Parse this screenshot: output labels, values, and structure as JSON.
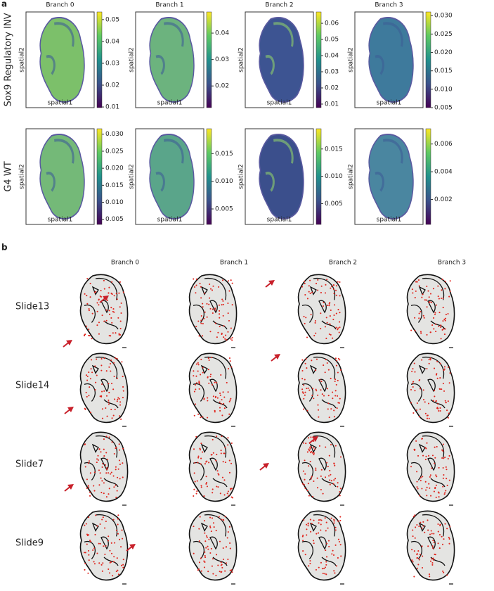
{
  "panel_a": {
    "label": "a",
    "x_label": "spatial1",
    "y_label": "spatial2",
    "columns": [
      "Branch 0",
      "Branch 1",
      "Branch 2",
      "Branch 3"
    ],
    "rows": [
      {
        "label": "Sox9 Regulatory INV",
        "colorbars": [
          {
            "lim": [
              0.0097,
              0.0535
            ],
            "ticks": [
              0.01,
              0.02,
              0.03,
              0.04,
              0.05
            ]
          },
          {
            "lim": [
              0.0118,
              0.048
            ],
            "ticks": [
              0.02,
              0.03,
              0.04
            ]
          },
          {
            "lim": [
              0.0078,
              0.067
            ],
            "ticks": [
              0.01,
              0.02,
              0.03,
              0.04,
              0.05,
              0.06
            ]
          },
          {
            "lim": [
              0.005,
              0.031
            ],
            "ticks": [
              0.005,
              {
                "value": 0.01,
                "label": "0.010"
              },
              0.015,
              {
                "value": 0.02,
                "label": "0.020"
              },
              0.025,
              {
                "value": 0.03,
                "label": "0.030"
              }
            ]
          }
        ]
      },
      {
        "label": "G4 WT",
        "colorbars": [
          {
            "lim": [
              0.0035,
              0.0316
            ],
            "ticks": [
              0.005,
              {
                "value": 0.01,
                "label": "0.010"
              },
              0.015,
              {
                "value": 0.02,
                "label": "0.020"
              },
              0.025,
              {
                "value": 0.03,
                "label": "0.030"
              }
            ]
          },
          {
            "lim": [
              0.0022,
              0.0195
            ],
            "ticks": [
              0.005,
              {
                "value": 0.01,
                "label": "0.010"
              },
              0.015
            ]
          },
          {
            "lim": [
              0.0012,
              0.0187
            ],
            "ticks": [
              0.005,
              {
                "value": 0.01,
                "label": "0.010"
              },
              0.015
            ]
          },
          {
            "lim": [
              0.0002,
              0.0071
            ],
            "ticks": [
              0.002,
              0.004,
              0.006
            ]
          }
        ]
      }
    ]
  },
  "panel_b": {
    "label": "b",
    "columns": [
      "Branch 0",
      "Branch 1",
      "Branch 2",
      "Branch 3"
    ],
    "rows": [
      "Slide13",
      "Slide14",
      "Slide7",
      "Slide9"
    ]
  }
}
